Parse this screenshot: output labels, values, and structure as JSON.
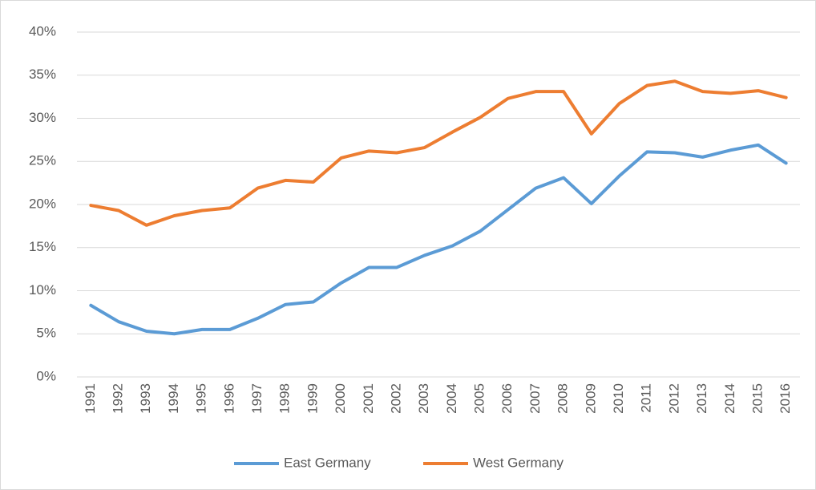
{
  "chart_data": {
    "type": "line",
    "categories": [
      "1991",
      "1992",
      "1993",
      "1994",
      "1995",
      "1996",
      "1997",
      "1998",
      "1999",
      "2000",
      "2001",
      "2002",
      "2003",
      "2004",
      "2005",
      "2006",
      "2007",
      "2008",
      "2009",
      "2010",
      "2011",
      "2012",
      "2013",
      "2014",
      "2015",
      "2016"
    ],
    "series": [
      {
        "name": "East Germany",
        "color": "#5b9bd5",
        "values": [
          8.3,
          6.4,
          5.3,
          5.0,
          5.5,
          5.5,
          6.8,
          8.4,
          8.7,
          10.9,
          12.7,
          12.7,
          14.1,
          15.2,
          16.9,
          19.4,
          21.9,
          23.1,
          20.1,
          23.3,
          26.1,
          26.0,
          25.5,
          26.3,
          26.9,
          24.8
        ]
      },
      {
        "name": "West Germany",
        "color": "#ed7d31",
        "values": [
          19.9,
          19.3,
          17.6,
          18.7,
          19.3,
          19.6,
          21.9,
          22.8,
          22.6,
          25.4,
          26.2,
          26.0,
          26.6,
          28.4,
          30.1,
          32.3,
          33.1,
          33.1,
          28.2,
          31.7,
          33.8,
          34.3,
          33.1,
          32.9,
          33.2,
          32.4
        ]
      }
    ],
    "ylim": [
      0,
      40
    ],
    "yticks": [
      {
        "value": 0,
        "label": "0%"
      },
      {
        "value": 5,
        "label": "5%"
      },
      {
        "value": 10,
        "label": "10%"
      },
      {
        "value": 15,
        "label": "15%"
      },
      {
        "value": 20,
        "label": "20%"
      },
      {
        "value": 25,
        "label": "25%"
      },
      {
        "value": 30,
        "label": "30%"
      },
      {
        "value": 35,
        "label": "35%"
      },
      {
        "value": 40,
        "label": "40%"
      }
    ],
    "grid": true,
    "legend": "bottom"
  }
}
